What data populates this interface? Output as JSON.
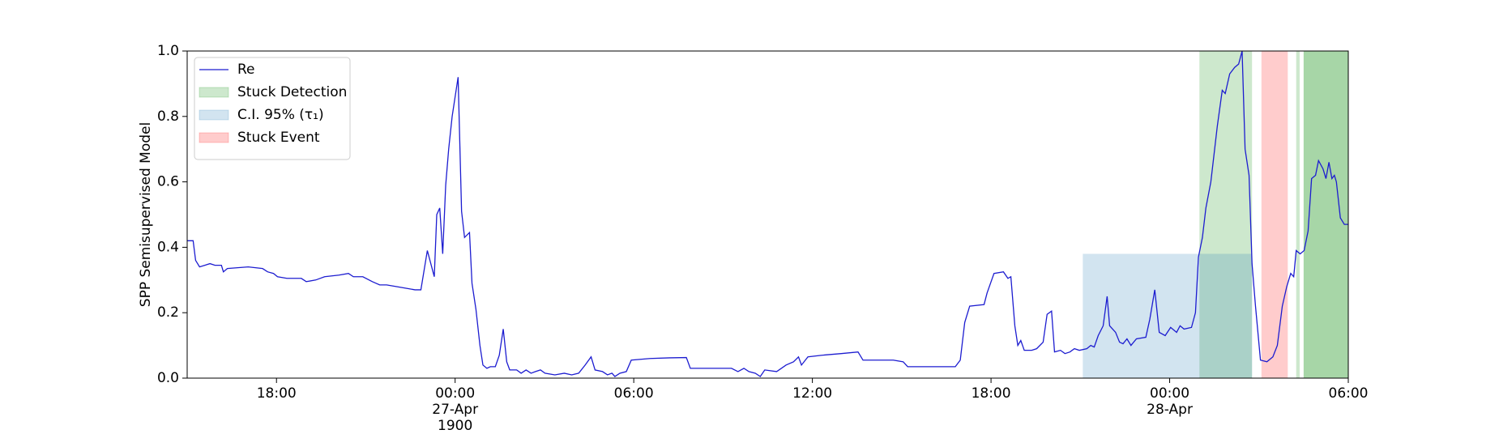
{
  "chart_data": {
    "type": "line",
    "ylabel": "SPP Semisupervised Model",
    "xlim": [
      "1900-04-26 15:00",
      "1900-04-28 06:00"
    ],
    "xticks": [
      {
        "value": "1900-04-26 18:00",
        "label": "18:00"
      },
      {
        "value": "1900-04-27 00:00",
        "label": "00:00\n27-Apr\n1900"
      },
      {
        "value": "1900-04-27 06:00",
        "label": "06:00"
      },
      {
        "value": "1900-04-27 12:00",
        "label": "12:00"
      },
      {
        "value": "1900-04-27 18:00",
        "label": "18:00"
      },
      {
        "value": "1900-04-28 00:00",
        "label": "00:00\n28-Apr"
      },
      {
        "value": "1900-04-28 06:00",
        "label": "06:00"
      }
    ],
    "ylim": [
      0,
      1
    ],
    "yticks": [
      {
        "value": 0,
        "label": "0.0"
      },
      {
        "value": 0.2,
        "label": "0.2"
      },
      {
        "value": 0.4,
        "label": "0.4"
      },
      {
        "value": 0.6,
        "label": "0.6"
      },
      {
        "value": 0.8,
        "label": "0.8"
      },
      {
        "value": 1,
        "label": "1.0"
      }
    ],
    "legend": "upper left",
    "x": [
      "1900-04-26 15:00",
      "1900-04-26 15:12",
      "1900-04-26 15:17",
      "1900-04-26 15:25",
      "1900-04-26 15:46",
      "1900-04-26 15:56",
      "1900-04-26 16:09",
      "1900-04-26 16:13",
      "1900-04-26 16:21",
      "1900-04-26 17:03",
      "1900-04-26 17:32",
      "1900-04-26 17:42",
      "1900-04-26 17:54",
      "1900-04-26 18:02",
      "1900-04-26 18:21",
      "1900-04-26 18:50",
      "1900-04-26 19:00",
      "1900-04-26 19:19",
      "1900-04-26 19:37",
      "1900-04-26 20:06",
      "1900-04-26 20:25",
      "1900-04-26 20:35",
      "1900-04-26 20:54",
      "1900-04-26 21:13",
      "1900-04-26 21:28",
      "1900-04-26 21:42",
      "1900-04-26 22:01",
      "1900-04-26 22:20",
      "1900-04-26 22:39",
      "1900-04-26 22:51",
      "1900-04-26 23:04",
      "1900-04-26 23:18",
      "1900-04-26 23:23",
      "1900-04-26 23:29",
      "1900-04-26 23:35",
      "1900-04-26 23:41",
      "1900-04-26 23:47",
      "1900-04-26 23:54",
      "1900-04-27 00:06",
      "1900-04-27 00:13",
      "1900-04-27 00:19",
      "1900-04-27 00:29",
      "1900-04-27 00:34",
      "1900-04-27 00:42",
      "1900-04-27 00:50",
      "1900-04-27 00:56",
      "1900-04-27 01:04",
      "1900-04-27 01:11",
      "1900-04-27 01:21",
      "1900-04-27 01:29",
      "1900-04-27 01:37",
      "1900-04-27 01:44",
      "1900-04-27 01:50",
      "1900-04-27 02:04",
      "1900-04-27 02:13",
      "1900-04-27 02:23",
      "1900-04-27 02:33",
      "1900-04-27 02:42",
      "1900-04-27 02:52",
      "1900-04-27 03:01",
      "1900-04-27 03:21",
      "1900-04-27 03:40",
      "1900-04-27 03:55",
      "1900-04-27 04:09",
      "1900-04-27 04:22",
      "1900-04-27 04:34",
      "1900-04-27 04:42",
      "1900-04-27 04:57",
      "1900-04-27 05:07",
      "1900-04-27 05:16",
      "1900-04-27 05:22",
      "1900-04-27 05:32",
      "1900-04-27 05:45",
      "1900-04-27 05:55",
      "1900-04-27 06:33",
      "1900-04-27 07:12",
      "1900-04-27 07:46",
      "1900-04-27 07:54",
      "1900-04-27 08:29",
      "1900-04-27 09:17",
      "1900-04-27 09:30",
      "1900-04-27 09:42",
      "1900-04-27 09:52",
      "1900-04-27 10:05",
      "1900-04-27 10:15",
      "1900-04-27 10:24",
      "1900-04-27 10:48",
      "1900-04-27 11:07",
      "1900-04-27 11:22",
      "1900-04-27 11:32",
      "1900-04-27 11:38",
      "1900-04-27 11:51",
      "1900-04-27 12:19",
      "1900-04-27 12:58",
      "1900-04-27 13:32",
      "1900-04-27 13:42",
      "1900-04-27 14:43",
      "1900-04-27 15:03",
      "1900-04-27 15:12",
      "1900-04-27 16:48",
      "1900-04-27 16:58",
      "1900-04-27 17:07",
      "1900-04-27 17:17",
      "1900-04-27 17:46",
      "1900-04-27 17:52",
      "1900-04-27 18:06",
      "1900-04-27 18:25",
      "1900-04-27 18:34",
      "1900-04-27 18:40",
      "1900-04-27 18:48",
      "1900-04-27 18:54",
      "1900-04-27 19:00",
      "1900-04-27 19:07",
      "1900-04-27 19:22",
      "1900-04-27 19:32",
      "1900-04-27 19:45",
      "1900-04-27 19:53",
      "1900-04-27 20:02",
      "1900-04-27 20:08",
      "1900-04-27 20:20",
      "1900-04-27 20:29",
      "1900-04-27 20:39",
      "1900-04-27 20:48",
      "1900-04-27 20:58",
      "1900-04-27 21:13",
      "1900-04-27 21:21",
      "1900-04-27 21:28",
      "1900-04-27 21:36",
      "1900-04-27 21:46",
      "1900-04-27 21:54",
      "1900-04-27 21:59",
      "1900-04-27 22:11",
      "1900-04-27 22:19",
      "1900-04-27 22:26",
      "1900-04-27 22:34",
      "1900-04-27 22:42",
      "1900-04-27 22:53",
      "1900-04-27 23:12",
      "1900-04-27 23:20",
      "1900-04-27 23:30",
      "1900-04-27 23:39",
      "1900-04-27 23:51",
      "1900-04-28 00:02",
      "1900-04-28 00:14",
      "1900-04-28 00:21",
      "1900-04-28 00:29",
      "1900-04-28 00:44",
      "1900-04-28 00:52",
      "1900-04-28 00:58",
      "1900-04-28 01:06",
      "1900-04-28 01:13",
      "1900-04-28 01:23",
      "1900-04-28 01:36",
      "1900-04-28 01:46",
      "1900-04-28 01:52",
      "1900-04-28 02:01",
      "1900-04-28 02:11",
      "1900-04-28 02:19",
      "1900-04-28 02:26",
      "1900-04-28 02:32",
      "1900-04-28 02:40",
      "1900-04-28 02:46",
      "1900-04-28 02:53",
      "1900-04-28 03:03",
      "1900-04-28 03:16",
      "1900-04-28 03:28",
      "1900-04-28 03:37",
      "1900-04-28 03:47",
      "1900-04-28 03:56",
      "1900-04-28 04:04",
      "1900-04-28 04:10",
      "1900-04-28 04:15",
      "1900-04-28 04:23",
      "1900-04-28 04:31",
      "1900-04-28 04:39",
      "1900-04-28 04:46",
      "1900-04-28 04:54",
      "1900-04-28 05:00",
      "1900-04-28 05:09",
      "1900-04-28 05:15",
      "1900-04-28 05:21",
      "1900-04-28 05:27",
      "1900-04-28 05:32",
      "1900-04-28 05:36",
      "1900-04-28 05:44",
      "1900-04-28 05:52",
      "1900-04-28 06:00"
    ],
    "series": [
      {
        "name": "Re",
        "color": "#1c1cd0",
        "values": [
          0.42,
          0.42,
          0.36,
          0.34,
          0.35,
          0.345,
          0.345,
          0.325,
          0.335,
          0.34,
          0.335,
          0.325,
          0.32,
          0.31,
          0.305,
          0.305,
          0.295,
          0.3,
          0.31,
          0.315,
          0.32,
          0.31,
          0.31,
          0.295,
          0.285,
          0.285,
          0.28,
          0.275,
          0.27,
          0.27,
          0.39,
          0.31,
          0.5,
          0.52,
          0.38,
          0.59,
          0.7,
          0.8,
          0.92,
          0.51,
          0.43,
          0.445,
          0.29,
          0.21,
          0.1,
          0.04,
          0.03,
          0.035,
          0.035,
          0.07,
          0.15,
          0.05,
          0.025,
          0.025,
          0.015,
          0.025,
          0.015,
          0.02,
          0.025,
          0.015,
          0.01,
          0.015,
          0.01,
          0.015,
          0.04,
          0.065,
          0.025,
          0.02,
          0.01,
          0.015,
          0.005,
          0.015,
          0.02,
          0.055,
          0.06,
          0.062,
          0.063,
          0.03,
          0.03,
          0.03,
          0.02,
          0.03,
          0.02,
          0.015,
          0.005,
          0.025,
          0.02,
          0.04,
          0.05,
          0.065,
          0.04,
          0.065,
          0.07,
          0.075,
          0.08,
          0.055,
          0.055,
          0.05,
          0.035,
          0.035,
          0.055,
          0.17,
          0.22,
          0.225,
          0.26,
          0.32,
          0.325,
          0.305,
          0.31,
          0.16,
          0.1,
          0.115,
          0.085,
          0.085,
          0.09,
          0.11,
          0.195,
          0.205,
          0.08,
          0.085,
          0.075,
          0.08,
          0.09,
          0.085,
          0.09,
          0.1,
          0.095,
          0.13,
          0.16,
          0.25,
          0.16,
          0.14,
          0.11,
          0.105,
          0.12,
          0.1,
          0.12,
          0.125,
          0.18,
          0.27,
          0.14,
          0.13,
          0.155,
          0.14,
          0.16,
          0.15,
          0.155,
          0.2,
          0.37,
          0.43,
          0.52,
          0.6,
          0.77,
          0.88,
          0.87,
          0.93,
          0.95,
          0.96,
          1.0,
          0.7,
          0.62,
          0.35,
          0.22,
          0.055,
          0.05,
          0.065,
          0.1,
          0.22,
          0.28,
          0.32,
          0.31,
          0.39,
          0.38,
          0.39,
          0.45,
          0.61,
          0.62,
          0.665,
          0.64,
          0.61,
          0.66,
          0.61,
          0.62,
          0.6,
          0.49,
          0.47,
          0.47
        ]
      }
    ],
    "spans": [
      {
        "name": "Stuck Detection",
        "color": "#2ca02c",
        "alpha": 0.24,
        "regions": [
          {
            "start": "1900-04-28 01:00",
            "end": "1900-04-28 02:46",
            "y": [
              0,
              1
            ]
          },
          {
            "start": "1900-04-28 04:15",
            "end": "1900-04-28 04:22",
            "y": [
              0,
              1
            ]
          },
          {
            "start": "1900-04-28 04:30",
            "end": "1900-04-28 06:00",
            "y": [
              0,
              1
            ]
          },
          {
            "start": "1900-04-28 04:30",
            "end": "1900-04-28 06:00",
            "y": [
              0,
              1
            ]
          }
        ]
      },
      {
        "name": "C.I. 95% (τ₁)",
        "color": "#1f77b4",
        "alpha": 0.2,
        "regions": [
          {
            "start": "1900-04-27 21:05",
            "end": "1900-04-28 02:46",
            "y": [
              0,
              0.38
            ]
          }
        ]
      },
      {
        "name": "Stuck Event",
        "color": "#ff0000",
        "alpha": 0.2,
        "regions": [
          {
            "start": "1900-04-28 03:05",
            "end": "1900-04-28 03:58",
            "y": [
              0,
              1
            ]
          }
        ]
      }
    ]
  }
}
